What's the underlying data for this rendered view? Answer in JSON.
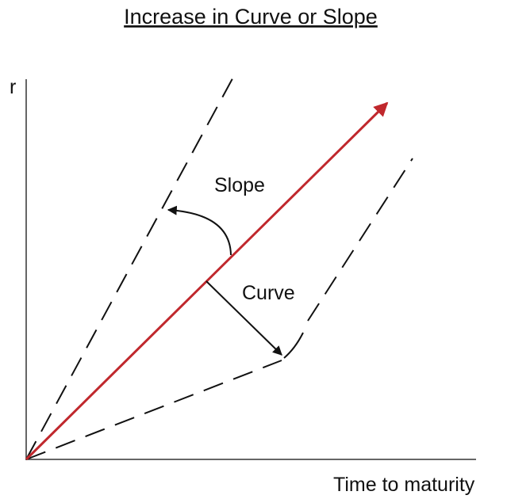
{
  "title": "Increase in Curve or Slope",
  "axes": {
    "y_label": "r",
    "x_label": "Time to maturity"
  },
  "annotations": {
    "slope": "Slope",
    "curve": "Curve"
  }
}
